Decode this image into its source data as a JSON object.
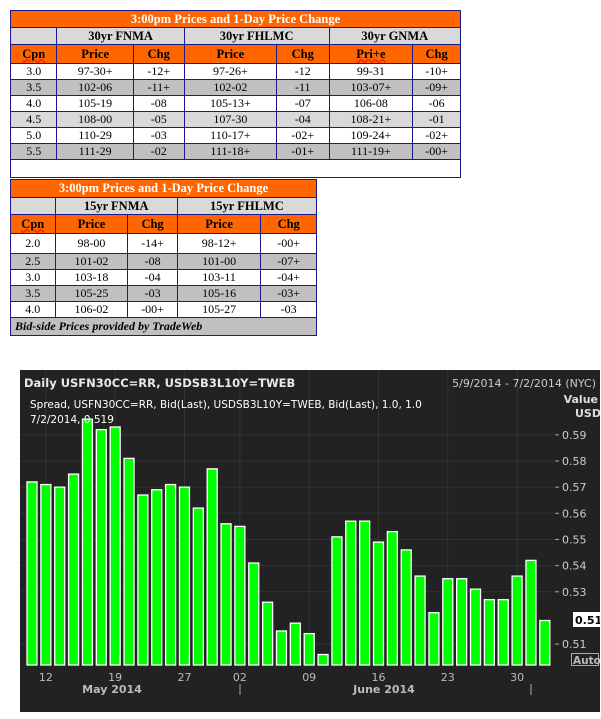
{
  "table30": {
    "title": "3:00pm Prices and 1-Day Price Change",
    "groups": [
      "30yr FNMA",
      "30yr FHLMC",
      "30yr GNMA"
    ],
    "headers": [
      "Cpn",
      "Price",
      "Chg",
      "Price",
      "Chg",
      "Pri+e",
      "Chg"
    ],
    "rows": [
      [
        "3.0",
        "97-30+",
        "-12+",
        "97-26+",
        "-12",
        "99-31",
        "-10+"
      ],
      [
        "3.5",
        "102-06",
        "-11+",
        "102-02",
        "-11",
        "103-07+",
        "-09+"
      ],
      [
        "4.0",
        "105-19",
        "-08",
        "105-13+",
        "-07",
        "106-08",
        "-06"
      ],
      [
        "4.5",
        "108-00",
        "-05",
        "107-30",
        "-04",
        "108-21+",
        "-01"
      ],
      [
        "5.0",
        "110-29",
        "-03",
        "110-17+",
        "-02+",
        "109-24+",
        "-02+"
      ],
      [
        "5.5",
        "111-29",
        "-02",
        "111-18+",
        "-01+",
        "111-19+",
        "-00+"
      ]
    ]
  },
  "table15": {
    "title": "3:00pm Prices and 1-Day Price Change",
    "groups": [
      "15yr FNMA",
      "15yr FHLMC"
    ],
    "headers": [
      "Cpn",
      "Price",
      "Chg",
      "Price",
      "Chg"
    ],
    "rows": [
      [
        "2.0",
        "98-00",
        "-14+",
        "98-12+",
        "-00+"
      ],
      [
        "2.5",
        "101-02",
        "-08",
        "101-00",
        "-07+"
      ],
      [
        "3.0",
        "103-18",
        "-04",
        "103-11",
        "-04+"
      ],
      [
        "3.5",
        "105-25",
        "-03",
        "105-16",
        "-03+"
      ],
      [
        "4.0",
        "106-02",
        "-00+",
        "105-27",
        "-03"
      ]
    ],
    "footer": "Bid-side Prices provided by TradeWeb"
  },
  "chart_data": {
    "type": "bar",
    "title": "Daily USFN30CC=RR, USDSB3L10Y=TWEB",
    "date_range": "5/9/2014 - 7/2/2014 (NYC)",
    "legend_line1": "Spread, USFN30CC=RR, Bid(Last), USDSB3L10Y=TWEB, Bid(Last),  1.0, 1.0",
    "legend_line2": "7/2/2014, 0.519",
    "ylabel": "Value",
    "yunit": "USD",
    "ylim": [
      0.502,
      0.593
    ],
    "yticks": [
      "0.59",
      "0.58",
      "0.57",
      "0.56",
      "0.55",
      "0.54",
      "0.53",
      "0.51"
    ],
    "last_value": "0.519",
    "auto_label": "Auto",
    "xtick_labels": [
      "12",
      "19",
      "27",
      "02",
      "09",
      "16",
      "23",
      "30"
    ],
    "month_labels": [
      "May 2014",
      "June 2014"
    ],
    "bar_color": "#00ff00",
    "categories": [
      "2014-05-09",
      "2014-05-12",
      "2014-05-13",
      "2014-05-14",
      "2014-05-15",
      "2014-05-16",
      "2014-05-19",
      "2014-05-20",
      "2014-05-21",
      "2014-05-22",
      "2014-05-23",
      "2014-05-27",
      "2014-05-28",
      "2014-05-29",
      "2014-05-30",
      "2014-06-02",
      "2014-06-03",
      "2014-06-04",
      "2014-06-05",
      "2014-06-06",
      "2014-06-09",
      "2014-06-10",
      "2014-06-11",
      "2014-06-12",
      "2014-06-13",
      "2014-06-16",
      "2014-06-17",
      "2014-06-18",
      "2014-06-19",
      "2014-06-20",
      "2014-06-23",
      "2014-06-24",
      "2014-06-25",
      "2014-06-26",
      "2014-06-27",
      "2014-06-30",
      "2014-07-01",
      "2014-07-02"
    ],
    "values": [
      0.572,
      0.571,
      0.57,
      0.575,
      0.598,
      0.592,
      0.593,
      0.581,
      0.567,
      0.569,
      0.571,
      0.57,
      0.562,
      0.577,
      0.556,
      0.555,
      0.541,
      0.526,
      0.515,
      0.518,
      0.514,
      0.506,
      0.551,
      0.557,
      0.557,
      0.549,
      0.553,
      0.546,
      0.536,
      0.522,
      0.535,
      0.535,
      0.531,
      0.527,
      0.527,
      0.536,
      0.542,
      0.519
    ]
  }
}
